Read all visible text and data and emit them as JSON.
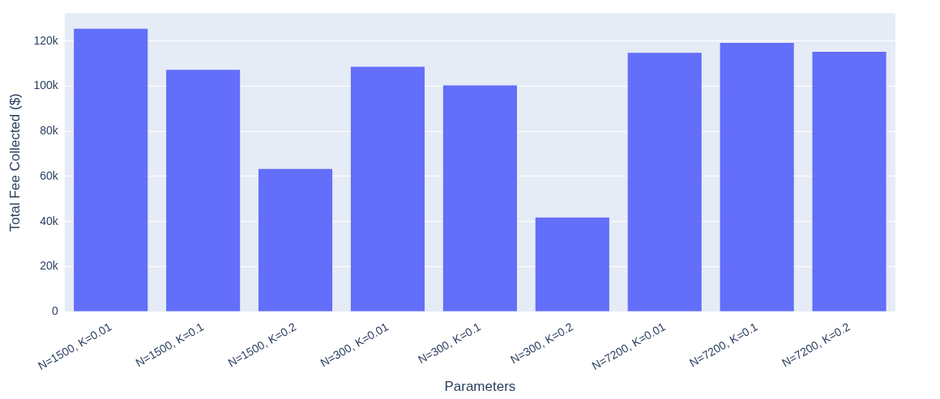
{
  "chart_data": {
    "type": "bar",
    "xlabel": "Parameters",
    "ylabel": "Total Fee Collected ($)",
    "categories": [
      "N=1500, K=0.01",
      "N=1500, K=0.1",
      "N=1500, K=0.2",
      "N=300, K=0.01",
      "N=300, K=0.1",
      "N=300, K=0.2",
      "N=7200, K=0.01",
      "N=7200, K=0.1",
      "N=7200, K=0.2"
    ],
    "values": [
      125500,
      107300,
      63300,
      108700,
      100400,
      41800,
      114900,
      119300,
      115300
    ],
    "color": "#636efa",
    "ylim": [
      0,
      132400
    ],
    "yticks": [
      {
        "value": 0,
        "label": "0"
      },
      {
        "value": 20000,
        "label": "20k"
      },
      {
        "value": 40000,
        "label": "40k"
      },
      {
        "value": 60000,
        "label": "60k"
      },
      {
        "value": 80000,
        "label": "80k"
      },
      {
        "value": 100000,
        "label": "100k"
      },
      {
        "value": 120000,
        "label": "120k"
      }
    ],
    "grid": "y"
  }
}
